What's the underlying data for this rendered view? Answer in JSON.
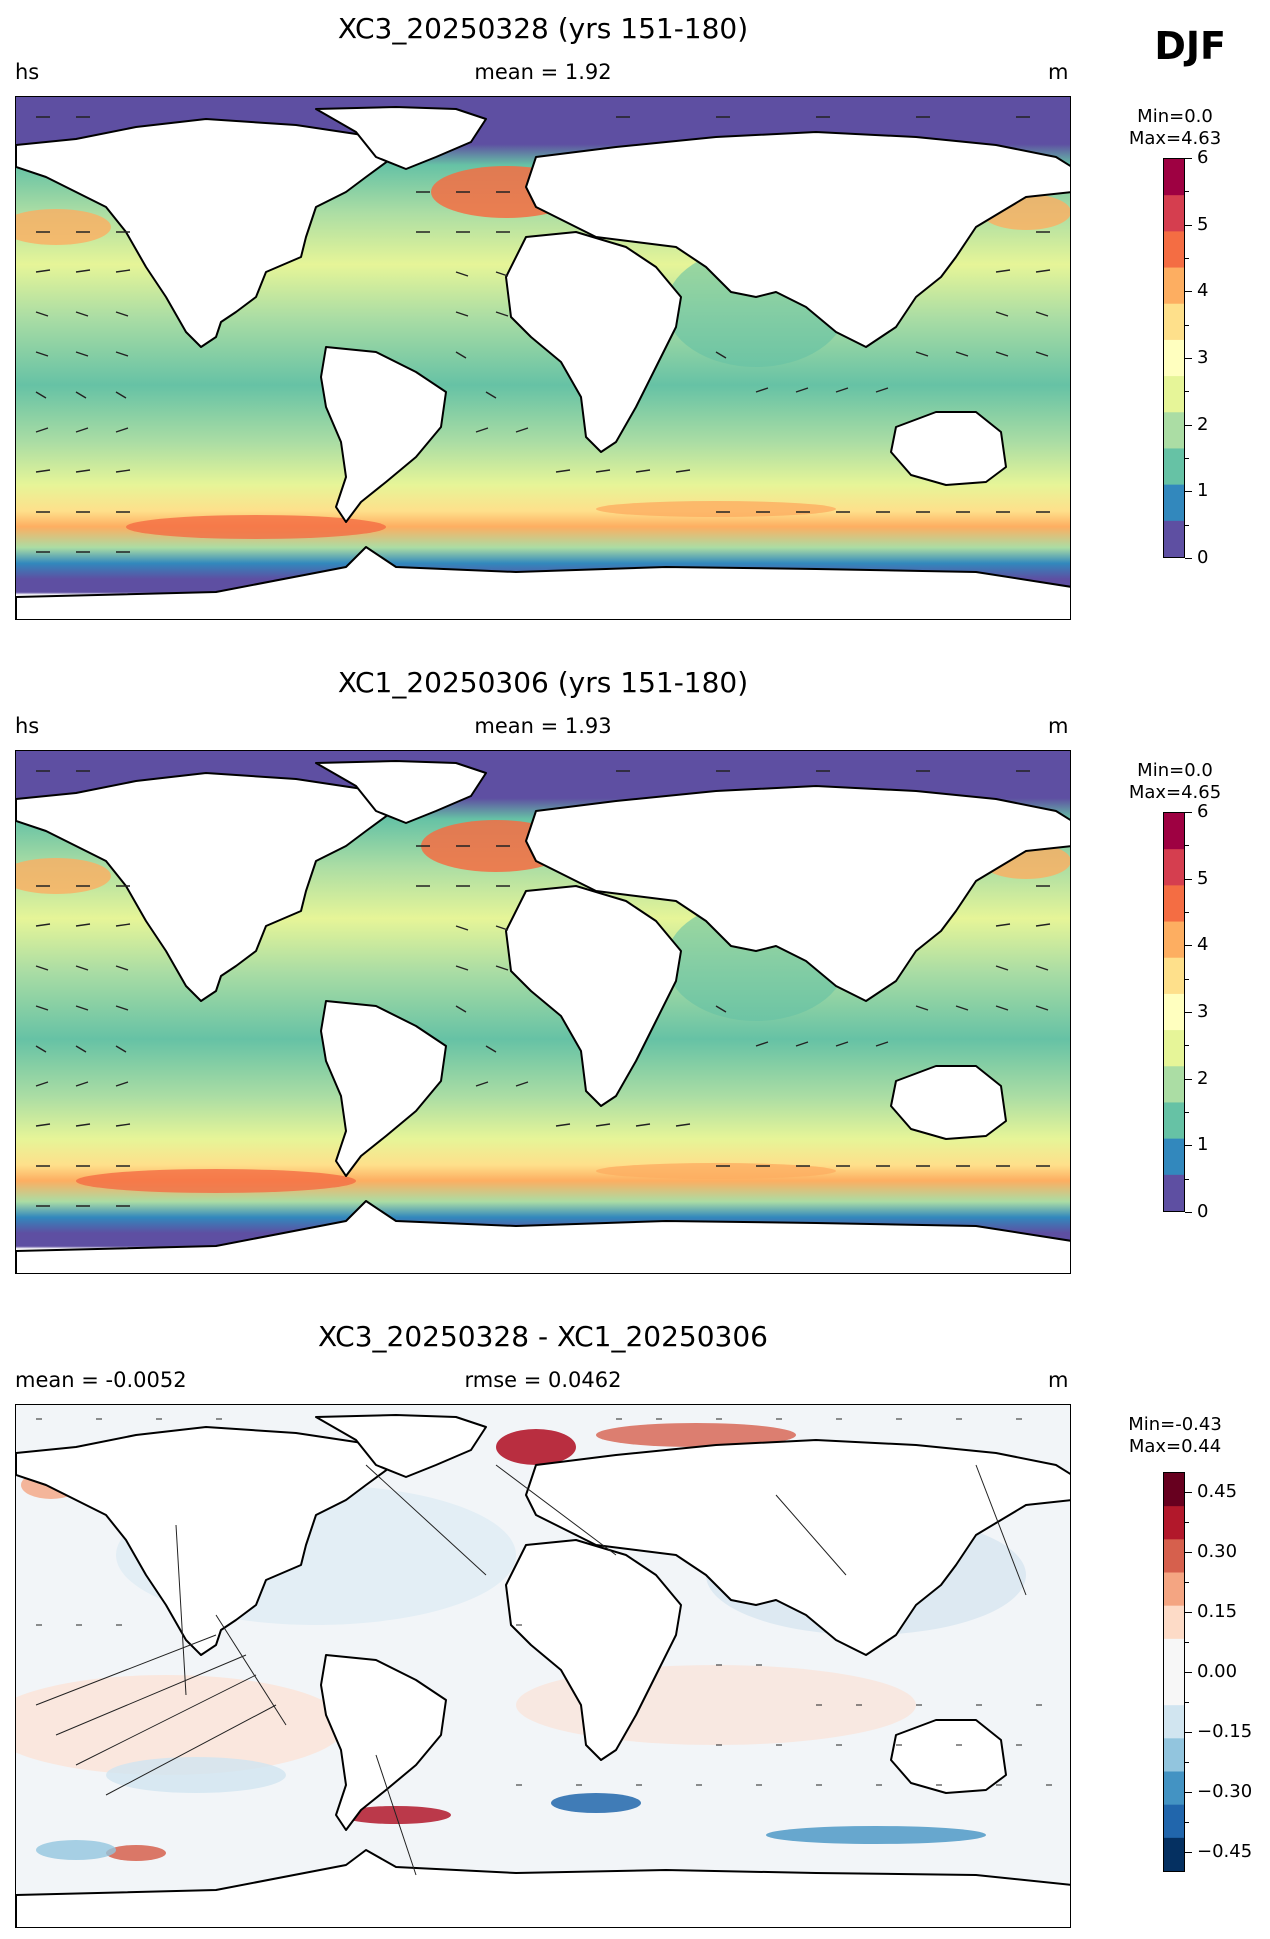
{
  "season": "DJF",
  "panels": [
    {
      "title": "XC3_20250328 (yrs 151-180)",
      "left_label": "hs",
      "center_label": "mean = 1.92",
      "right_label": "m",
      "min_text": "Min=0.0",
      "max_text": "Max=4.63",
      "colorbar": {
        "ticks": [
          "6",
          "5",
          "4",
          "3",
          "2",
          "1",
          "0"
        ],
        "colors": [
          "#9e0142",
          "#d53e4f",
          "#f46d43",
          "#fdae61",
          "#fee08b",
          "#ffffbf",
          "#e6f598",
          "#abdda4",
          "#66c2a5",
          "#3288bd",
          "#5e4fa2"
        ]
      }
    },
    {
      "title": "XC1_20250306 (yrs 151-180)",
      "left_label": "hs",
      "center_label": "mean = 1.93",
      "right_label": "m",
      "min_text": "Min=0.0",
      "max_text": "Max=4.65",
      "colorbar": {
        "ticks": [
          "6",
          "5",
          "4",
          "3",
          "2",
          "1",
          "0"
        ],
        "colors": [
          "#9e0142",
          "#d53e4f",
          "#f46d43",
          "#fdae61",
          "#fee08b",
          "#ffffbf",
          "#e6f598",
          "#abdda4",
          "#66c2a5",
          "#3288bd",
          "#5e4fa2"
        ]
      }
    },
    {
      "title": "XC3_20250328 - XC1_20250306",
      "left_label": "mean = -0.0052",
      "center_label": "rmse = 0.0462",
      "right_label": "m",
      "min_text": "Min=-0.43",
      "max_text": "Max=0.44",
      "colorbar": {
        "ticks": [
          "0.45",
          "0.30",
          "0.15",
          "0.00",
          "−0.15",
          "−0.30",
          "−0.45"
        ],
        "colors": [
          "#67001f",
          "#b2182b",
          "#d6604d",
          "#f4a582",
          "#fddbc7",
          "#f7f7f7",
          "#f7f7f7",
          "#d1e5f0",
          "#92c5de",
          "#4393c3",
          "#2166ac",
          "#053061"
        ]
      }
    }
  ]
}
